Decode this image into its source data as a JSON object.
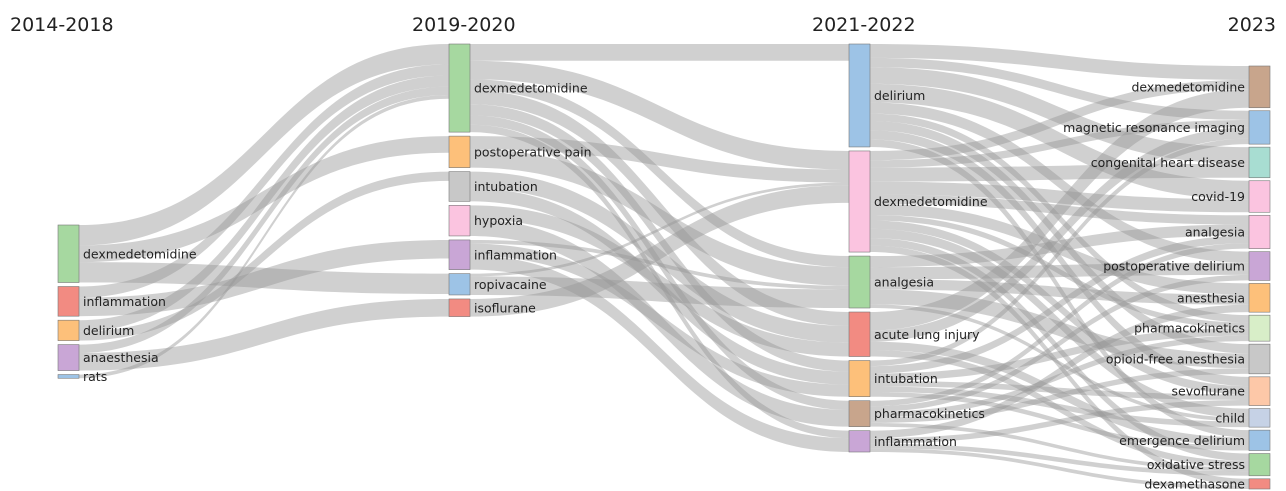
{
  "chart_data": {
    "type": "sankey",
    "columns": [
      "2014-2018",
      "2019-2020",
      "2021-2022",
      "2023"
    ],
    "nodes": [
      {
        "name": "dexmedetomidine",
        "column": 0,
        "color": "#a6d8a0"
      },
      {
        "name": "inflammation",
        "column": 0,
        "color": "#f28b82"
      },
      {
        "name": "delirium",
        "column": 0,
        "color": "#fdc07a"
      },
      {
        "name": "anaesthesia",
        "column": 0,
        "color": "#c9a6d6"
      },
      {
        "name": "rats",
        "column": 0,
        "color": "#9dc3e6"
      },
      {
        "name": "dexmedetomidine",
        "column": 1,
        "color": "#a6d8a0"
      },
      {
        "name": "postoperative pain",
        "column": 1,
        "color": "#fdc07a"
      },
      {
        "name": "intubation",
        "column": 1,
        "color": "#c8c8c8"
      },
      {
        "name": "hypoxia",
        "column": 1,
        "color": "#fbc4e0"
      },
      {
        "name": "inflammation",
        "column": 1,
        "color": "#c9a6d6"
      },
      {
        "name": "ropivacaine",
        "column": 1,
        "color": "#9dc3e6"
      },
      {
        "name": "isoflurane",
        "column": 1,
        "color": "#f28b82"
      },
      {
        "name": "delirium",
        "column": 2,
        "color": "#9dc3e6"
      },
      {
        "name": "dexmedetomidine",
        "column": 2,
        "color": "#fbc4e0"
      },
      {
        "name": "analgesia",
        "column": 2,
        "color": "#a6d8a0"
      },
      {
        "name": "acute lung injury",
        "column": 2,
        "color": "#f28b82"
      },
      {
        "name": "intubation",
        "column": 2,
        "color": "#fdc07a"
      },
      {
        "name": "pharmacokinetics",
        "column": 2,
        "color": "#c8a58c"
      },
      {
        "name": "inflammation",
        "column": 2,
        "color": "#c9a6d6"
      },
      {
        "name": "dexmedetomidine",
        "column": 3,
        "color": "#c8a58c"
      },
      {
        "name": "magnetic resonance imaging",
        "column": 3,
        "color": "#9dc3e6"
      },
      {
        "name": "congenital heart disease",
        "column": 3,
        "color": "#a8ddd2"
      },
      {
        "name": "covid-19",
        "column": 3,
        "color": "#fbc4e0"
      },
      {
        "name": "analgesia",
        "column": 3,
        "color": "#fbc4e0"
      },
      {
        "name": "postoperative delirium",
        "column": 3,
        "color": "#c9a6d6"
      },
      {
        "name": "anesthesia",
        "column": 3,
        "color": "#fdc07a"
      },
      {
        "name": "pharmacokinetics",
        "column": 3,
        "color": "#d8eec8"
      },
      {
        "name": "opioid-free anesthesia",
        "column": 3,
        "color": "#c8c8c8"
      },
      {
        "name": "sevoflurane",
        "column": 3,
        "color": "#fdc8a8"
      },
      {
        "name": "child",
        "column": 3,
        "color": "#c6d2e6"
      },
      {
        "name": "emergence delirium",
        "column": 3,
        "color": "#9dc3e6"
      },
      {
        "name": "oxidative stress",
        "column": 3,
        "color": "#a6d8a0"
      },
      {
        "name": "dexamethasone",
        "column": 3,
        "color": "#f28b82"
      }
    ],
    "link_color": "rgba(150,150,150,0.45)",
    "links": [
      [
        0,
        5,
        22
      ],
      [
        0,
        6,
        18
      ],
      [
        0,
        10,
        22
      ],
      [
        1,
        9,
        20
      ],
      [
        1,
        5,
        12
      ],
      [
        2,
        5,
        12
      ],
      [
        2,
        7,
        10
      ],
      [
        3,
        11,
        19
      ],
      [
        3,
        5,
        9
      ],
      [
        4,
        5,
        4
      ],
      [
        5,
        12,
        18
      ],
      [
        5,
        13,
        20
      ],
      [
        5,
        14,
        12
      ],
      [
        5,
        15,
        15
      ],
      [
        5,
        16,
        12
      ],
      [
        5,
        17,
        10
      ],
      [
        5,
        18,
        8
      ],
      [
        6,
        13,
        14
      ],
      [
        6,
        14,
        20
      ],
      [
        7,
        15,
        18
      ],
      [
        7,
        16,
        14
      ],
      [
        8,
        15,
        15
      ],
      [
        8,
        17,
        18
      ],
      [
        9,
        18,
        15
      ],
      [
        9,
        16,
        13
      ],
      [
        9,
        14,
        4
      ],
      [
        10,
        14,
        20
      ],
      [
        10,
        13,
        3
      ],
      [
        11,
        13,
        19
      ],
      [
        12,
        19,
        15
      ],
      [
        12,
        20,
        10
      ],
      [
        12,
        21,
        18
      ],
      [
        12,
        22,
        20
      ],
      [
        12,
        24,
        12
      ],
      [
        12,
        26,
        8
      ],
      [
        12,
        27,
        10
      ],
      [
        12,
        28,
        10
      ],
      [
        12,
        30,
        8
      ],
      [
        13,
        19,
        10
      ],
      [
        13,
        20,
        8
      ],
      [
        13,
        21,
        15
      ],
      [
        13,
        22,
        14
      ],
      [
        13,
        23,
        10
      ],
      [
        13,
        25,
        12
      ],
      [
        13,
        26,
        6
      ],
      [
        13,
        28,
        9
      ],
      [
        13,
        29,
        10
      ],
      [
        13,
        31,
        8
      ],
      [
        13,
        32,
        7
      ],
      [
        14,
        23,
        12
      ],
      [
        14,
        24,
        13
      ],
      [
        14,
        25,
        11
      ],
      [
        14,
        27,
        16
      ],
      [
        14,
        29,
        4
      ],
      [
        15,
        19,
        20
      ],
      [
        15,
        31,
        7
      ],
      [
        15,
        30,
        9
      ],
      [
        15,
        20,
        12
      ],
      [
        16,
        26,
        8
      ],
      [
        16,
        20,
        6
      ],
      [
        16,
        23,
        8
      ],
      [
        16,
        29,
        6
      ],
      [
        16,
        30,
        5
      ],
      [
        16,
        28,
        6
      ],
      [
        17,
        31,
        4
      ],
      [
        17,
        27,
        6
      ],
      [
        17,
        26,
        6
      ],
      [
        17,
        24,
        6
      ],
      [
        17,
        23,
        6
      ],
      [
        18,
        31,
        5
      ],
      [
        18,
        32,
        4
      ],
      [
        18,
        28,
        6
      ],
      [
        18,
        25,
        8
      ]
    ]
  }
}
